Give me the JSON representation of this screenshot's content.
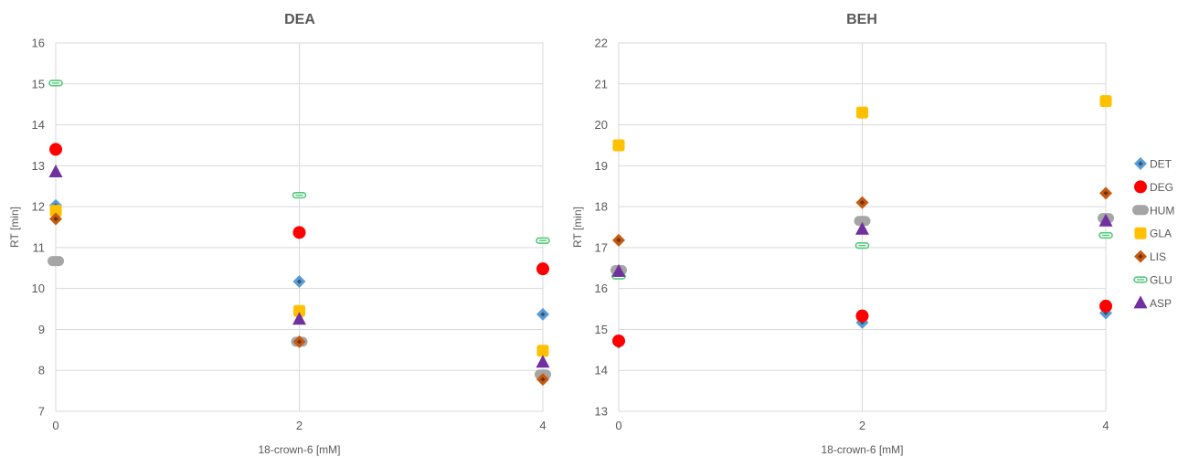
{
  "chart_data": [
    {
      "type": "scatter",
      "title": "DEA",
      "xlabel": "18-crown-6 [mM]",
      "ylabel": "RT [min]",
      "xlim": [
        0,
        4
      ],
      "ylim": [
        7,
        16
      ],
      "x_ticks": [
        "0",
        "2",
        "4"
      ],
      "y_ticks": [
        "7",
        "8",
        "9",
        "10",
        "11",
        "12",
        "13",
        "14",
        "15",
        "16"
      ],
      "grid": true,
      "legend": "none",
      "x": [
        0,
        2,
        4
      ],
      "series": [
        {
          "name": "DET",
          "values": [
            12.03,
            10.17,
            9.37
          ]
        },
        {
          "name": "DEG",
          "values": [
            13.4,
            11.37,
            10.48
          ]
        },
        {
          "name": "HUM",
          "values": [
            10.67,
            8.7,
            7.9
          ]
        },
        {
          "name": "GLA",
          "values": [
            11.9,
            9.45,
            8.48
          ]
        },
        {
          "name": "LIS",
          "values": [
            11.7,
            8.7,
            7.78
          ]
        },
        {
          "name": "GLU",
          "values": [
            15.02,
            12.28,
            11.17
          ]
        },
        {
          "name": "ASP",
          "values": [
            12.85,
            9.25,
            8.2
          ]
        }
      ]
    },
    {
      "type": "scatter",
      "title": "BEH",
      "xlabel": "18-crown-6 [mM]",
      "ylabel": "RT [min]",
      "xlim": [
        0,
        4
      ],
      "ylim": [
        13,
        22
      ],
      "x_ticks": [
        "0",
        "2",
        "4"
      ],
      "y_ticks": [
        "13",
        "14",
        "15",
        "16",
        "17",
        "18",
        "19",
        "20",
        "21",
        "22"
      ],
      "grid": true,
      "legend": "right",
      "x": [
        0,
        2,
        4
      ],
      "series": [
        {
          "name": "DET",
          "values": [
            14.68,
            15.17,
            15.4
          ]
        },
        {
          "name": "DEG",
          "values": [
            14.72,
            15.33,
            15.57
          ]
        },
        {
          "name": "HUM",
          "values": [
            16.45,
            17.65,
            17.72
          ]
        },
        {
          "name": "GLA",
          "values": [
            19.5,
            20.3,
            20.58
          ]
        },
        {
          "name": "LIS",
          "values": [
            17.18,
            18.1,
            18.33
          ]
        },
        {
          "name": "GLU",
          "values": [
            16.3,
            17.05,
            17.3
          ]
        },
        {
          "name": "ASP",
          "values": [
            16.42,
            17.45,
            17.65
          ]
        }
      ]
    }
  ],
  "legend": [
    {
      "name": "DET",
      "marker": "diamond-icon",
      "color": "#5B9BD5"
    },
    {
      "name": "DEG",
      "marker": "circle-icon",
      "color": "#FF0000"
    },
    {
      "name": "HUM",
      "marker": "dash-icon",
      "color": "#A5A5A5"
    },
    {
      "name": "GLA",
      "marker": "square-icon",
      "color": "#FFC000"
    },
    {
      "name": "LIS",
      "marker": "diamond-icon",
      "color": "#C55A11"
    },
    {
      "name": "GLU",
      "marker": "outlined-dash-icon",
      "color": "#50C878"
    },
    {
      "name": "ASP",
      "marker": "triangle-icon",
      "color": "#7030A0"
    }
  ]
}
